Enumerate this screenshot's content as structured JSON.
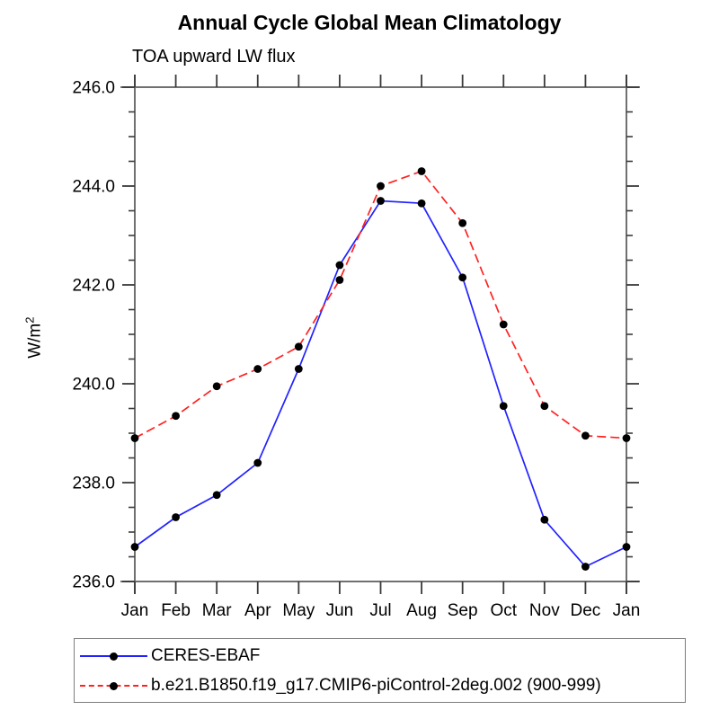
{
  "header": {
    "title": "Annual Cycle Global Mean Climatology",
    "subtitle": "TOA upward LW flux"
  },
  "ylabel": {
    "base": "W/m",
    "exp": "2"
  },
  "colors": {
    "frame": "#707070",
    "tick": "#3a3a3a",
    "text": "#000000",
    "marker": "#000000",
    "ceres_blue": "#2222ff",
    "model_red": "#ff2222"
  },
  "chart_data": {
    "type": "line",
    "title": "Annual Cycle Global Mean Climatology",
    "subtitle": "TOA upward LW flux",
    "ylabel": "W/m2",
    "categories": [
      "Jan",
      "Feb",
      "Mar",
      "Apr",
      "May",
      "Jun",
      "Jul",
      "Aug",
      "Sep",
      "Oct",
      "Nov",
      "Dec",
      "Jan"
    ],
    "series": [
      {
        "name": "CERES-EBAF",
        "color": "#2222ff",
        "style": "solid",
        "marker": "black-dot",
        "values": [
          236.7,
          237.3,
          237.75,
          238.4,
          240.3,
          242.4,
          243.7,
          243.65,
          242.15,
          239.55,
          237.25,
          236.3,
          236.7
        ]
      },
      {
        "name": "b.e21.B1850.f19_g17.CMIP6-piControl-2deg.002 (900-999)",
        "color": "#ff2222",
        "style": "dashed",
        "marker": "black-dot",
        "values": [
          238.9,
          239.35,
          239.95,
          240.3,
          240.75,
          242.1,
          244.0,
          244.3,
          243.25,
          241.2,
          239.55,
          238.95,
          238.9
        ]
      }
    ],
    "ylim": [
      236.0,
      246.0
    ],
    "ytick_major_interval": 2.0,
    "ytick_minor_interval": 0.5,
    "ytick_labels": [
      "236.0",
      "238.0",
      "240.0",
      "242.0",
      "244.0",
      "246.0"
    ],
    "grid": false,
    "legend_position": "bottom-left"
  }
}
